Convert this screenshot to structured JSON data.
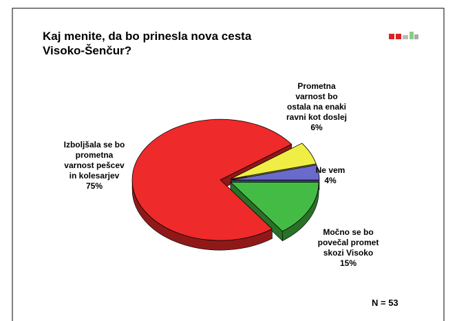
{
  "chart_data": {
    "type": "pie",
    "title": "Kaj menite, da bo prinesla nova cesta\nVisoko-Šenčur?",
    "categories": [
      "Močno se bo\npovečal promet\nskozi Visoko",
      "Izboljšala se bo\nprometna\nvarnost pešcev\nin kolesarjev",
      "Prometna\nvarnost bo\nostala na enaki\nravni kot doslej",
      "Ne vem"
    ],
    "values": [
      15,
      75,
      6,
      4
    ],
    "value_labels": [
      "15%",
      "75%",
      "6%",
      "4%"
    ],
    "colors": [
      "#44bb44",
      "#ee2a2a",
      "#eeee44",
      "#6a6acc"
    ],
    "annotation": "N = 53"
  }
}
